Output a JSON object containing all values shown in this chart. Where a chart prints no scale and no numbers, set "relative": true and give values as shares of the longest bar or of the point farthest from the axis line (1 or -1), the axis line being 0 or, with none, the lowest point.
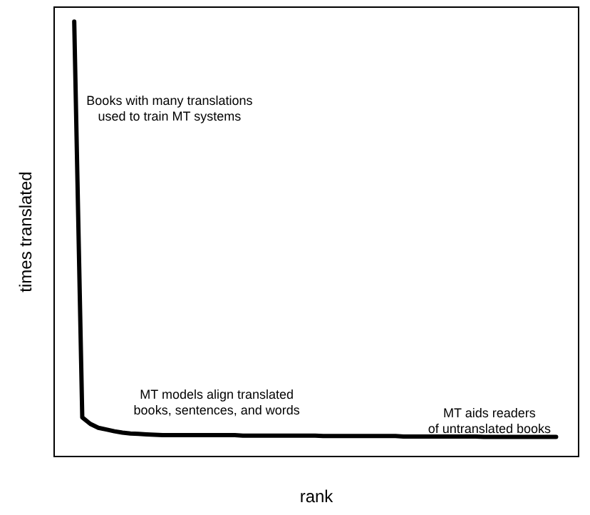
{
  "chart_data": {
    "type": "line",
    "relative": true,
    "xlabel": "rank",
    "ylabel": "times translated",
    "color": "#000000",
    "marker": "none",
    "line_style": "solid",
    "grid": false,
    "categories": [
      null,
      null,
      null,
      null,
      null,
      null,
      null,
      null,
      null,
      null,
      null,
      null,
      null,
      null,
      null,
      null,
      null,
      null,
      null,
      null,
      null,
      null,
      null,
      null,
      null,
      null,
      null,
      null,
      null,
      null,
      null,
      null,
      null,
      null,
      null,
      null,
      null,
      null,
      null,
      null,
      null,
      null,
      null,
      null,
      null,
      null,
      null,
      null,
      null,
      null,
      null,
      null,
      null,
      null,
      null,
      null,
      null,
      null,
      null,
      null,
      null
    ],
    "values": [
      1,
      0.09,
      0.075,
      0.066,
      0.062,
      0.058,
      0.055,
      0.053,
      0.052,
      0.051,
      0.05,
      0.049,
      0.049,
      0.049,
      0.049,
      0.049,
      0.049,
      0.049,
      0.049,
      0.049,
      0.049,
      0.048,
      0.048,
      0.048,
      0.048,
      0.048,
      0.048,
      0.048,
      0.048,
      0.048,
      0.048,
      0.047,
      0.047,
      0.047,
      0.047,
      0.047,
      0.047,
      0.047,
      0.047,
      0.047,
      0.047,
      0.046,
      0.046,
      0.046,
      0.046,
      0.046,
      0.046,
      0.046,
      0.046,
      0.046,
      0.046,
      0.045,
      0.045,
      0.045,
      0.045,
      0.045,
      0.045,
      0.045,
      0.045,
      0.045,
      0.045
    ],
    "annotations": [
      "Books with many translations\nused to train MT systems",
      "MT models align translated\nbooks, sentences, and words",
      "MT aids readers\nof untranslated books"
    ]
  }
}
